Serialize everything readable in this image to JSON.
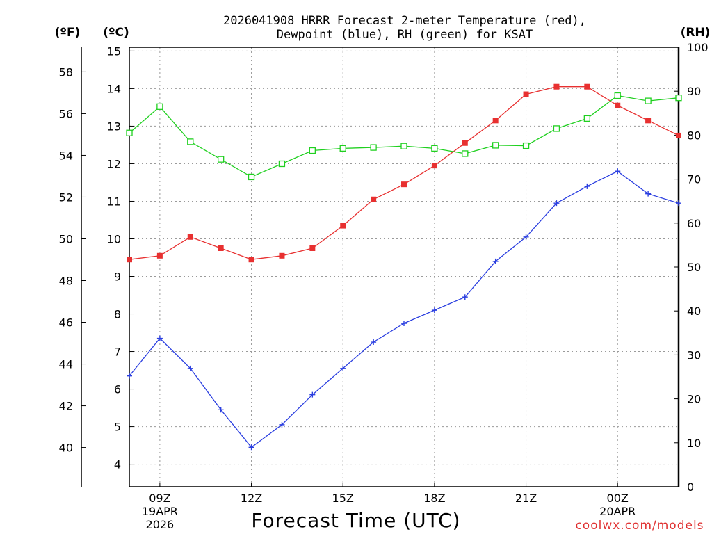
{
  "chart_data": {
    "type": "line",
    "title_lines": [
      "2026041908 HRRR Forecast 2-meter Temperature (red),",
      "Dewpoint (blue), RH (green) for KSAT"
    ],
    "xlabel": "Forecast Time (UTC)",
    "credit": "coolwx.com/models",
    "units": {
      "fahrenheit": "(ºF)",
      "celsius": "(ºC)",
      "rh": "(RH)"
    },
    "x_hours": [
      8,
      9,
      10,
      11,
      12,
      13,
      14,
      15,
      16,
      17,
      18,
      19,
      20,
      21,
      22,
      23,
      24,
      25,
      26
    ],
    "x_range": [
      8,
      26
    ],
    "x_ticks": [
      {
        "hour": 9,
        "lines": [
          "09Z",
          "19APR",
          "2026"
        ]
      },
      {
        "hour": 12,
        "lines": [
          "12Z"
        ]
      },
      {
        "hour": 15,
        "lines": [
          "15Z"
        ]
      },
      {
        "hour": 18,
        "lines": [
          "18Z"
        ]
      },
      {
        "hour": 21,
        "lines": [
          "21Z"
        ]
      },
      {
        "hour": 24,
        "lines": [
          "00Z",
          "20APR"
        ]
      }
    ],
    "celsius_axis": {
      "range": [
        3.4,
        15.1
      ],
      "ticks": [
        4,
        5,
        6,
        7,
        8,
        9,
        10,
        11,
        12,
        13,
        14,
        15
      ]
    },
    "fahrenheit_ticks": [
      40,
      42,
      44,
      46,
      48,
      50,
      52,
      54,
      56,
      58
    ],
    "rh_axis": {
      "range": [
        0,
        100
      ],
      "ticks": [
        0,
        10,
        20,
        30,
        40,
        50,
        60,
        70,
        80,
        90,
        100
      ]
    },
    "series": [
      {
        "name": "Temperature",
        "axis": "celsius",
        "color": "#e83030",
        "marker": "filled-square",
        "values": [
          9.45,
          9.55,
          10.05,
          9.75,
          9.45,
          9.55,
          9.75,
          10.35,
          11.05,
          11.45,
          11.95,
          12.55,
          13.15,
          13.85,
          14.05,
          14.05,
          13.55,
          13.15,
          12.75
        ]
      },
      {
        "name": "Dewpoint",
        "axis": "celsius",
        "color": "#2a3ee0",
        "marker": "plus",
        "values": [
          6.35,
          7.35,
          6.55,
          5.45,
          4.45,
          5.05,
          5.85,
          6.55,
          7.25,
          7.75,
          8.1,
          8.45,
          9.4,
          10.05,
          10.95,
          11.4,
          11.8,
          11.2,
          10.95
        ]
      },
      {
        "name": "RH",
        "axis": "rh",
        "color": "#20d020",
        "marker": "open-square",
        "values": [
          80.5,
          86.5,
          78.5,
          74.5,
          70.5,
          73.5,
          76.5,
          77.0,
          77.2,
          77.5,
          77.0,
          75.8,
          77.7,
          77.6,
          81.5,
          83.8,
          89.0,
          87.8,
          88.5
        ]
      }
    ]
  }
}
